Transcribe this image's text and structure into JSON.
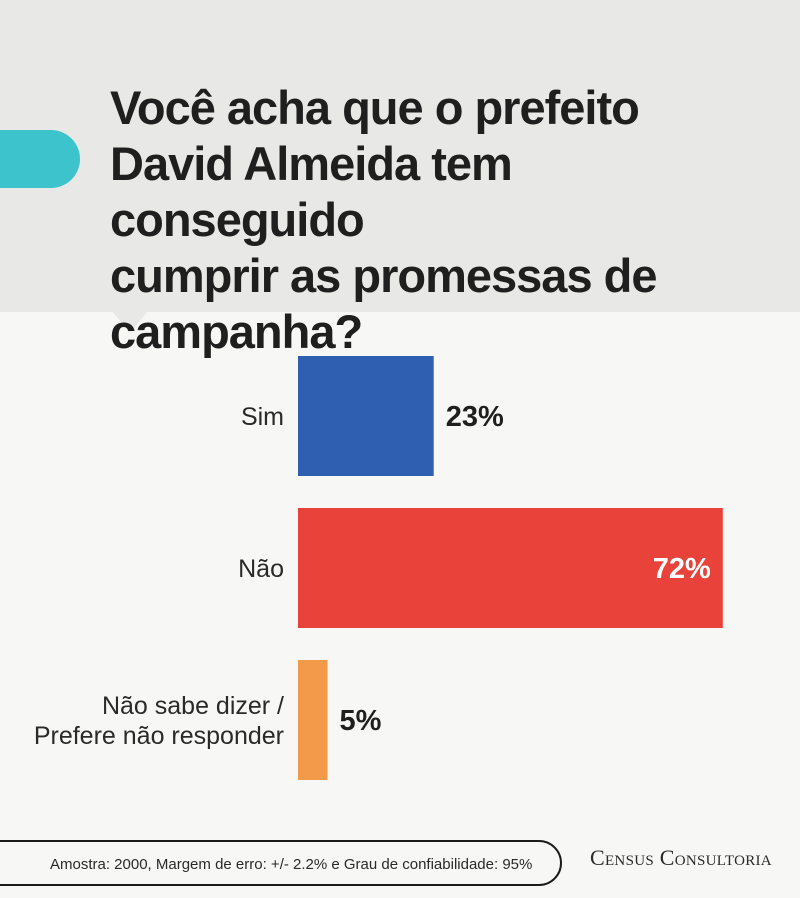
{
  "header": {
    "title_lines": [
      "Você acha que o prefeito",
      "David Almeida tem conseguido",
      "cumprir as promessas de",
      "campanha?"
    ]
  },
  "chart_data": {
    "type": "bar",
    "orientation": "horizontal",
    "title": "Você acha que o prefeito David Almeida tem conseguido cumprir as promessas de campanha?",
    "categories": [
      "Sim",
      "Não",
      "Não sabe dizer / Prefere não responder"
    ],
    "category_lines": [
      [
        "Sim"
      ],
      [
        "Não"
      ],
      [
        "Não sabe dizer /",
        "Prefere não responder"
      ]
    ],
    "values": [
      23,
      72,
      5
    ],
    "value_labels": [
      "23%",
      "72%",
      "5%"
    ],
    "colors": [
      "#2f5fb0",
      "#e8423a",
      "#f2994a"
    ],
    "xlim": [
      0,
      100
    ],
    "grid": false,
    "legend": "none"
  },
  "footer": {
    "note": "Amostra: 2000, Margem de erro: +/- 2.2% e Grau de confiabilidade: 95%",
    "brand": "Census Consultoria"
  }
}
